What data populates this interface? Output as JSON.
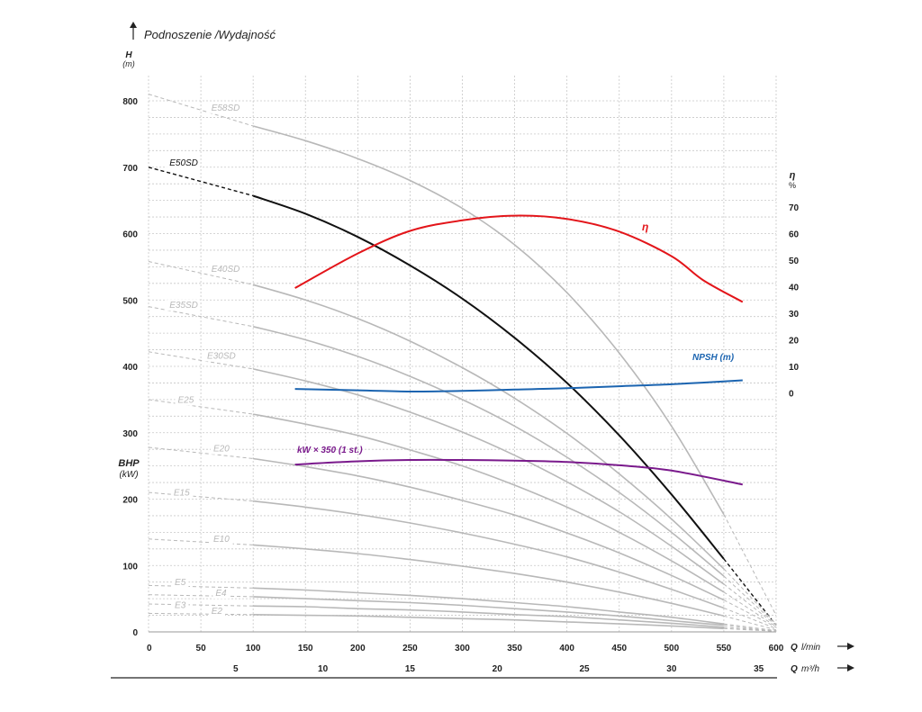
{
  "chart_data": {
    "type": "line",
    "title": "Podnoszenie /Wydajność",
    "y_left": {
      "label": "H",
      "unit": "(m)",
      "ylim": [
        0,
        810
      ],
      "ticks": [
        0,
        100,
        200,
        300,
        400,
        500,
        600,
        700,
        800
      ]
    },
    "bhp_axis": {
      "label": "BHP",
      "unit": "(kW)"
    },
    "y_right": {
      "label": "η",
      "unit": "%",
      "ticks": [
        0,
        10,
        20,
        30,
        40,
        50,
        60,
        70
      ],
      "mapping_h_at_0": 360,
      "mapping_h_per_unit": 4
    },
    "x_primary": {
      "label": "Q",
      "unit": "l/min",
      "xlim": [
        0,
        600
      ],
      "ticks": [
        0,
        50,
        100,
        150,
        200,
        250,
        300,
        350,
        400,
        450,
        500,
        550,
        600
      ]
    },
    "x_secondary": {
      "label": "Q",
      "unit": "m³/h",
      "ticks": [
        5,
        10,
        15,
        20,
        25,
        30,
        35
      ]
    },
    "grid": true,
    "series": [
      {
        "name": "E58SD",
        "color": "#b8b8b8",
        "points": [
          [
            0,
            810
          ],
          [
            100,
            762
          ],
          [
            150,
            740
          ],
          [
            200,
            713
          ],
          [
            250,
            680
          ],
          [
            300,
            638
          ],
          [
            350,
            583
          ],
          [
            400,
            511
          ],
          [
            450,
            420
          ],
          [
            500,
            310
          ],
          [
            550,
            177
          ],
          [
            600,
            25
          ]
        ]
      },
      {
        "name": "E50SD",
        "color": "#111111",
        "points": [
          [
            0,
            700
          ],
          [
            100,
            657
          ],
          [
            150,
            630
          ],
          [
            200,
            595
          ],
          [
            250,
            552
          ],
          [
            300,
            502
          ],
          [
            350,
            443
          ],
          [
            400,
            375
          ],
          [
            450,
            296
          ],
          [
            500,
            207
          ],
          [
            550,
            110
          ],
          [
            600,
            10
          ]
        ]
      },
      {
        "name": "E40SD",
        "color": "#b8b8b8",
        "points": [
          [
            0,
            558
          ],
          [
            100,
            523
          ],
          [
            150,
            500
          ],
          [
            200,
            472
          ],
          [
            250,
            438
          ],
          [
            300,
            398
          ],
          [
            350,
            352
          ],
          [
            400,
            299
          ],
          [
            450,
            238
          ],
          [
            500,
            170
          ],
          [
            550,
            95
          ],
          [
            600,
            12
          ]
        ]
      },
      {
        "name": "E35SD",
        "color": "#b8b8b8",
        "points": [
          [
            0,
            490
          ],
          [
            100,
            460
          ],
          [
            150,
            440
          ],
          [
            200,
            415
          ],
          [
            250,
            385
          ],
          [
            300,
            350
          ],
          [
            350,
            310
          ],
          [
            400,
            263
          ],
          [
            450,
            210
          ],
          [
            500,
            150
          ],
          [
            550,
            84
          ],
          [
            600,
            11
          ]
        ]
      },
      {
        "name": "E30SD",
        "color": "#b8b8b8",
        "points": [
          [
            0,
            422
          ],
          [
            100,
            396
          ],
          [
            150,
            378
          ],
          [
            200,
            357
          ],
          [
            250,
            331
          ],
          [
            300,
            301
          ],
          [
            350,
            266
          ],
          [
            400,
            226
          ],
          [
            450,
            181
          ],
          [
            500,
            129
          ],
          [
            550,
            72
          ],
          [
            600,
            10
          ]
        ]
      },
      {
        "name": "E25",
        "color": "#b8b8b8",
        "points": [
          [
            0,
            350
          ],
          [
            100,
            328
          ],
          [
            150,
            313
          ],
          [
            200,
            296
          ],
          [
            250,
            274
          ],
          [
            300,
            250
          ],
          [
            350,
            221
          ],
          [
            400,
            188
          ],
          [
            450,
            150
          ],
          [
            500,
            107
          ],
          [
            550,
            60
          ],
          [
            600,
            8
          ]
        ]
      },
      {
        "name": "E20",
        "color": "#b8b8b8",
        "points": [
          [
            0,
            278
          ],
          [
            100,
            261
          ],
          [
            150,
            249
          ],
          [
            200,
            235
          ],
          [
            250,
            218
          ],
          [
            300,
            198
          ],
          [
            350,
            176
          ],
          [
            400,
            149
          ],
          [
            450,
            119
          ],
          [
            500,
            85
          ],
          [
            550,
            48
          ],
          [
            600,
            7
          ]
        ]
      },
      {
        "name": "E15",
        "color": "#b8b8b8",
        "points": [
          [
            0,
            210
          ],
          [
            100,
            197
          ],
          [
            150,
            188
          ],
          [
            200,
            177
          ],
          [
            250,
            164
          ],
          [
            300,
            149
          ],
          [
            350,
            132
          ],
          [
            400,
            113
          ],
          [
            450,
            90
          ],
          [
            500,
            64
          ],
          [
            550,
            36
          ],
          [
            600,
            5
          ]
        ]
      },
      {
        "name": "E10",
        "color": "#b8b8b8",
        "points": [
          [
            0,
            140
          ],
          [
            100,
            131
          ],
          [
            150,
            125
          ],
          [
            200,
            118
          ],
          [
            250,
            109
          ],
          [
            300,
            99
          ],
          [
            350,
            88
          ],
          [
            400,
            75
          ],
          [
            450,
            60
          ],
          [
            500,
            43
          ],
          [
            550,
            24
          ],
          [
            600,
            3
          ]
        ]
      },
      {
        "name": "E5",
        "color": "#b8b8b8",
        "points": [
          [
            0,
            70
          ],
          [
            100,
            66
          ],
          [
            150,
            63
          ],
          [
            200,
            59
          ],
          [
            250,
            55
          ],
          [
            300,
            50
          ],
          [
            350,
            44
          ],
          [
            400,
            38
          ],
          [
            450,
            30
          ],
          [
            500,
            22
          ],
          [
            550,
            12
          ],
          [
            600,
            2
          ]
        ]
      },
      {
        "name": "E4",
        "color": "#b8b8b8",
        "points": [
          [
            0,
            56
          ],
          [
            100,
            53
          ],
          [
            150,
            50
          ],
          [
            200,
            47
          ],
          [
            250,
            44
          ],
          [
            300,
            40
          ],
          [
            350,
            35
          ],
          [
            400,
            30
          ],
          [
            450,
            24
          ],
          [
            500,
            17
          ],
          [
            550,
            10
          ],
          [
            600,
            1
          ]
        ]
      },
      {
        "name": "E3",
        "color": "#b8b8b8",
        "points": [
          [
            0,
            42
          ],
          [
            100,
            39
          ],
          [
            150,
            38
          ],
          [
            200,
            35
          ],
          [
            250,
            33
          ],
          [
            300,
            30
          ],
          [
            350,
            26
          ],
          [
            400,
            23
          ],
          [
            450,
            18
          ],
          [
            500,
            13
          ],
          [
            550,
            7
          ],
          [
            600,
            1
          ]
        ]
      },
      {
        "name": "E2",
        "color": "#b8b8b8",
        "points": [
          [
            0,
            28
          ],
          [
            100,
            26
          ],
          [
            150,
            25
          ],
          [
            200,
            24
          ],
          [
            250,
            22
          ],
          [
            300,
            20
          ],
          [
            350,
            18
          ],
          [
            400,
            15
          ],
          [
            450,
            12
          ],
          [
            500,
            9
          ],
          [
            550,
            5
          ],
          [
            600,
            1
          ]
        ]
      },
      {
        "name": "η",
        "color": "#e3151a",
        "points": [
          [
            140,
            518
          ],
          [
            200,
            570
          ],
          [
            250,
            604
          ],
          [
            300,
            620
          ],
          [
            350,
            627
          ],
          [
            400,
            622
          ],
          [
            450,
            603
          ],
          [
            500,
            566
          ],
          [
            530,
            530
          ],
          [
            568,
            497
          ]
        ]
      },
      {
        "name": "NPSH (m)",
        "color": "#1b64b0",
        "points": [
          [
            140,
            366
          ],
          [
            200,
            364
          ],
          [
            250,
            362
          ],
          [
            300,
            363
          ],
          [
            350,
            365
          ],
          [
            400,
            367
          ],
          [
            450,
            370
          ],
          [
            500,
            373
          ],
          [
            568,
            379
          ]
        ]
      },
      {
        "name": "kW × 350 (1 st.)",
        "color": "#7a1a8c",
        "points": [
          [
            140,
            252
          ],
          [
            200,
            257
          ],
          [
            250,
            259
          ],
          [
            300,
            259
          ],
          [
            350,
            258
          ],
          [
            400,
            256
          ],
          [
            450,
            251
          ],
          [
            500,
            243
          ],
          [
            568,
            222
          ]
        ]
      }
    ]
  }
}
